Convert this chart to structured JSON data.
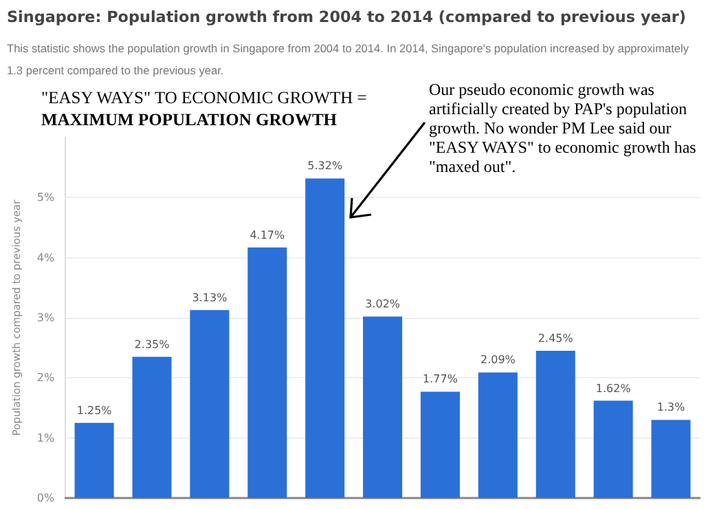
{
  "chart_data": {
    "type": "bar",
    "title": "Singapore: Population growth from 2004 to 2014 (compared to previous year)",
    "subtitle": "This statistic shows the population growth in Singapore from 2004 to 2014. In 2014, Singapore's population increased by approximately 1.3 percent compared to the previous year.",
    "ylabel": "Population growth compared to previous year",
    "annotations": [
      "\"EASY WAYS\" TO ECONOMIC GROWTH =",
      "MAXIMUM POPULATION GROWTH",
      "Our pseudo economic growth was artificially created by PAP's population growth.  No wonder PM Lee said our \"EASY WAYS\" to economic growth has \"maxed out\"."
    ],
    "categories": [
      null,
      null,
      null,
      null,
      null,
      null,
      null,
      null,
      null,
      null,
      null
    ],
    "values": [
      1.25,
      2.35,
      3.13,
      4.17,
      5.32,
      3.02,
      1.77,
      2.09,
      2.45,
      1.62,
      1.3
    ],
    "value_labels": [
      "1.25%",
      "2.35%",
      "3.13%",
      "4.17%",
      "5.32%",
      "3.02%",
      "1.77%",
      "2.09%",
      "2.45%",
      "1.62%",
      "1.3%"
    ],
    "color": "#2b70d6",
    "ylim": [
      0,
      6
    ],
    "yticks": [
      {
        "value": 0,
        "label": "0%"
      },
      {
        "value": 1,
        "label": "1%"
      },
      {
        "value": 2,
        "label": "2%"
      },
      {
        "value": 3,
        "label": "3%"
      },
      {
        "value": 4,
        "label": "4%"
      },
      {
        "value": 5,
        "label": "5%"
      }
    ],
    "grid": "y"
  }
}
